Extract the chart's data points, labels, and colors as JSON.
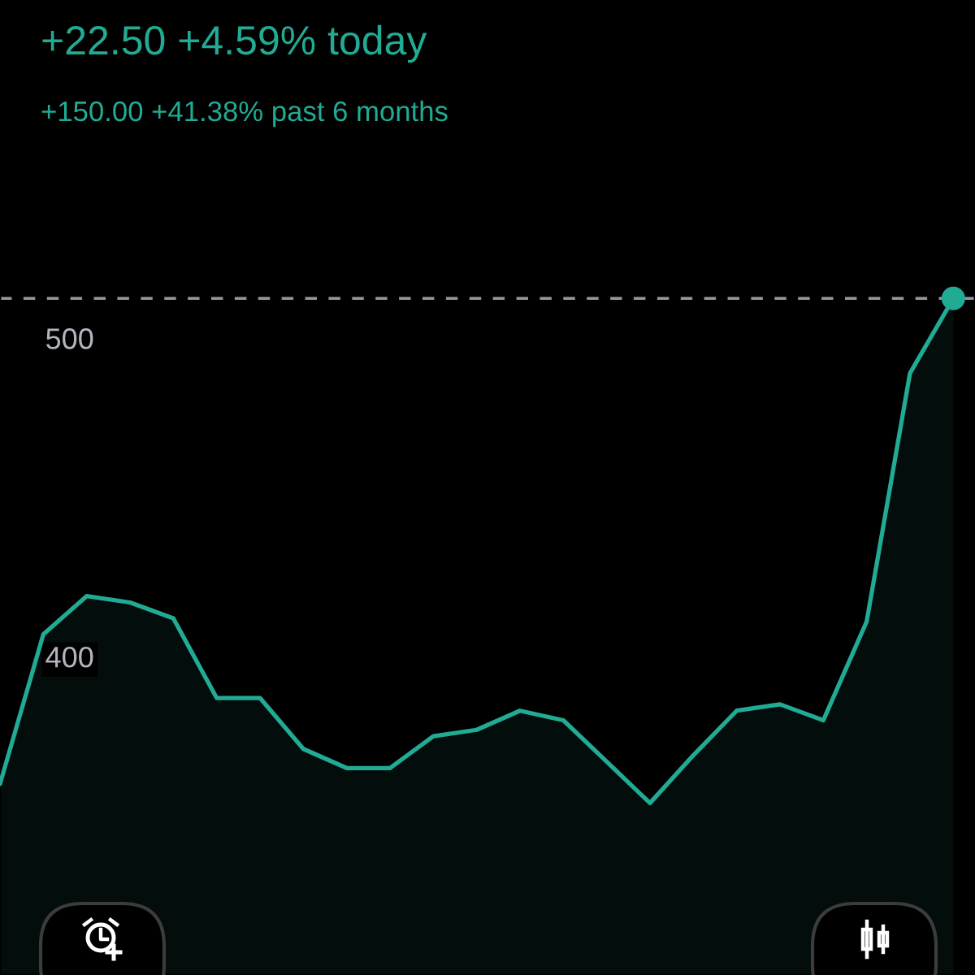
{
  "chart_data": {
    "type": "area",
    "title": "+22.50 +4.59% today",
    "subtitle": "+150.00 +41.38% past 6 months",
    "categories": [
      null,
      null,
      null,
      null,
      null,
      null,
      null,
      null,
      null,
      null,
      null,
      null,
      null,
      null,
      null,
      null,
      null,
      null,
      null,
      null,
      null,
      null,
      null
    ],
    "series": [
      {
        "color": "#22ab94",
        "values": [
          360,
          407,
          419,
          417,
          412,
          387,
          387,
          371,
          365,
          365,
          375,
          377,
          383,
          380,
          367,
          354,
          369,
          383,
          385,
          380,
          411,
          489,
          512.5
        ]
      },
      {
        "type": "scatter",
        "color": "#22ab94",
        "marker": "circle",
        "values": [
          null,
          null,
          null,
          null,
          null,
          null,
          null,
          null,
          null,
          null,
          null,
          null,
          null,
          null,
          null,
          null,
          null,
          null,
          null,
          null,
          null,
          null,
          512.5
        ]
      }
    ],
    "ylim": [
      300,
      522
    ],
    "yticks": [
      400,
      500
    ],
    "ref_lines": [
      {
        "axis": "y",
        "value": 512.5,
        "color": "#9598a1",
        "line_style": "dashed"
      }
    ]
  }
}
